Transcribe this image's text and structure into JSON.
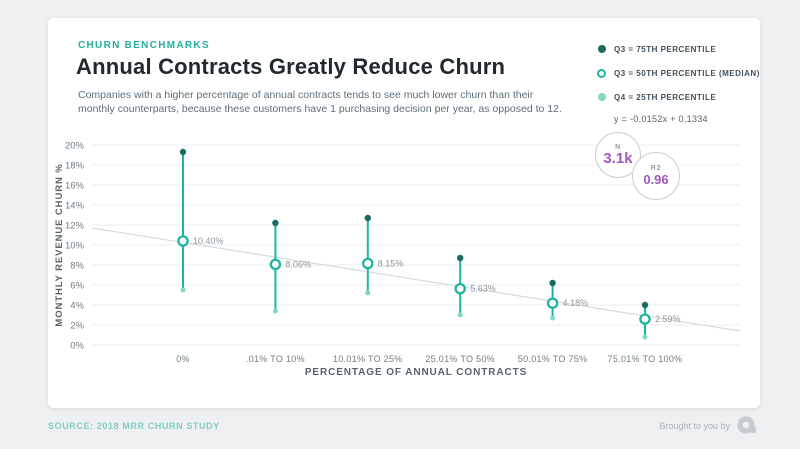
{
  "header": {
    "eyebrow": "CHURN BENCHMARKS",
    "title": "Annual Contracts Greatly Reduce Churn",
    "subtitle": "Companies with a higher percentage of annual contracts tends to see much lower churn than their monthly counterparts, because these customers have 1 purchasing decision per year, as opposed to 12."
  },
  "legend": {
    "items": [
      {
        "label": "Q3 = 75TH PERCENTILE",
        "marker": "filled-dark-dot"
      },
      {
        "label": "Q3 = 50TH PERCENTILE (MEDIAN)",
        "marker": "open-ring"
      },
      {
        "label": "Q4 = 25TH PERCENTILE",
        "marker": "filled-light-dot"
      }
    ],
    "equation": "y = -0.0152x + 0.1334"
  },
  "stats": {
    "n_label": "N",
    "n_value": "3.1k",
    "r2_label": "R2",
    "r2_value": "0.96"
  },
  "chart_data": {
    "type": "scatter",
    "subtype": "vertical-range-dot-plot",
    "title": "Annual Contracts Greatly Reduce Churn",
    "xlabel": "PERCENTAGE OF ANNUAL CONTRACTS",
    "ylabel": "MONTHLY REVENUE CHURN %",
    "categories": [
      "0%",
      ".01% TO 10%",
      "10.01% TO 25%",
      "25.01% TO 50%",
      "50.01% TO 75%",
      "75.01% TO 100%"
    ],
    "series": [
      {
        "name": "Q3 = 75TH PERCENTILE",
        "values": [
          19.3,
          12.2,
          12.7,
          8.7,
          6.2,
          4.0
        ]
      },
      {
        "name": "Q3 = 50TH PERCENTILE (MEDIAN)",
        "values": [
          10.4,
          8.06,
          8.15,
          5.63,
          4.18,
          2.59
        ],
        "labels": [
          "10.40%",
          "8.06%",
          "8.15%",
          "5.63%",
          "4.18%",
          "2.59%"
        ]
      },
      {
        "name": "Q4 = 25TH PERCENTILE",
        "values": [
          5.5,
          3.4,
          5.2,
          3.0,
          2.7,
          0.8
        ]
      }
    ],
    "trendline": {
      "equation": "y = -0.0152x + 0.1334",
      "endpoints_pct": [
        11.7,
        1.4
      ]
    },
    "ylim": [
      0,
      20
    ],
    "ytick_step": 2,
    "ytick_suffix": "%",
    "grid": true,
    "legend_position": "top-right"
  },
  "footer": {
    "source": "SOURCE: 2018 MRR CHURN STUDY",
    "brought_by": "Brought to you by"
  },
  "colors": {
    "teal": "#21b3a1",
    "marker_dark": "#1a6b60",
    "marker_light": "#7ed8c2",
    "purple": "#a158be",
    "gridline": "#edf0f2",
    "trendline": "#d7dbde",
    "eyebrow_teal": "#23ae9d",
    "card_bg": "#ffffff",
    "page_bg": "#edeff1",
    "logo_gray": "#c5cbd0"
  }
}
